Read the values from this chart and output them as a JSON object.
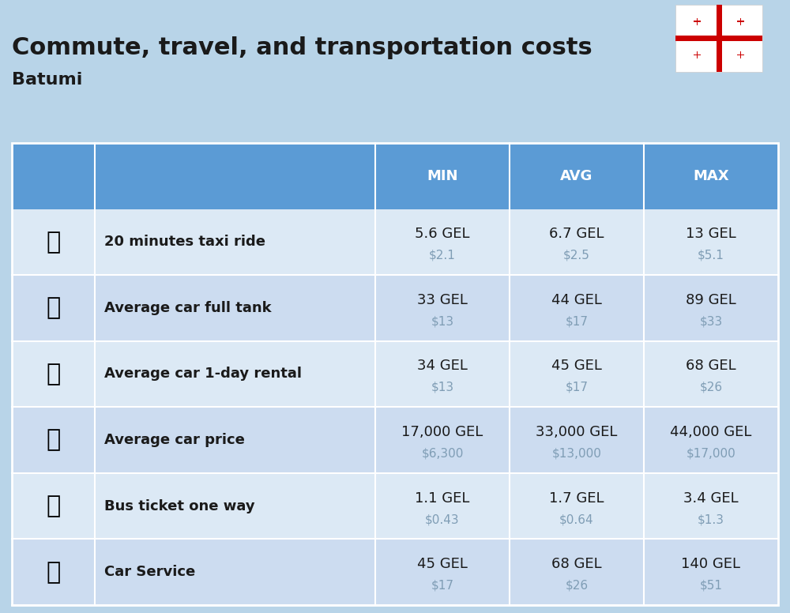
{
  "title": "Commute, travel, and transportation costs",
  "subtitle": "Batumi",
  "header_bg": "#5b9bd5",
  "header_text_color": "#ffffff",
  "row_bg_odd": "#dce9f5",
  "row_bg_even": "#ccdcf0",
  "top_bg": "#b8d4e8",
  "outer_bg": "#ffffff",
  "col_headers": [
    "MIN",
    "AVG",
    "MAX"
  ],
  "rows": [
    {
      "label": "20 minutes taxi ride",
      "emoji": "🚕",
      "min_gel": "5.6 GEL",
      "min_usd": "$2.1",
      "avg_gel": "6.7 GEL",
      "avg_usd": "$2.5",
      "max_gel": "13 GEL",
      "max_usd": "$5.1"
    },
    {
      "label": "Average car full tank",
      "emoji": "⛽",
      "min_gel": "33 GEL",
      "min_usd": "$13",
      "avg_gel": "44 GEL",
      "avg_usd": "$17",
      "max_gel": "89 GEL",
      "max_usd": "$33"
    },
    {
      "label": "Average car 1-day rental",
      "emoji": "🚙",
      "min_gel": "34 GEL",
      "min_usd": "$13",
      "avg_gel": "45 GEL",
      "avg_usd": "$17",
      "max_gel": "68 GEL",
      "max_usd": "$26"
    },
    {
      "label": "Average car price",
      "emoji": "🚗",
      "min_gel": "17,000 GEL",
      "min_usd": "$6,300",
      "avg_gel": "33,000 GEL",
      "avg_usd": "$13,000",
      "max_gel": "44,000 GEL",
      "max_usd": "$17,000"
    },
    {
      "label": "Bus ticket one way",
      "emoji": "🚌",
      "min_gel": "1.1 GEL",
      "min_usd": "$0.43",
      "avg_gel": "1.7 GEL",
      "avg_usd": "$0.64",
      "max_gel": "3.4 GEL",
      "max_usd": "$1.3"
    },
    {
      "label": "Car Service",
      "emoji": "🚗",
      "min_gel": "45 GEL",
      "min_usd": "$17",
      "avg_gel": "68 GEL",
      "avg_usd": "$26",
      "max_gel": "140 GEL",
      "max_usd": "$51"
    }
  ],
  "icon_emojis": [
    "🚕",
    "⛽️",
    "🚙",
    "🚗",
    "🚌",
    "🔧"
  ],
  "title_fontsize": 22,
  "subtitle_fontsize": 16,
  "header_fontsize": 13,
  "label_fontsize": 13,
  "value_fontsize": 13,
  "usd_fontsize": 11,
  "usd_color": "#7f9db5"
}
